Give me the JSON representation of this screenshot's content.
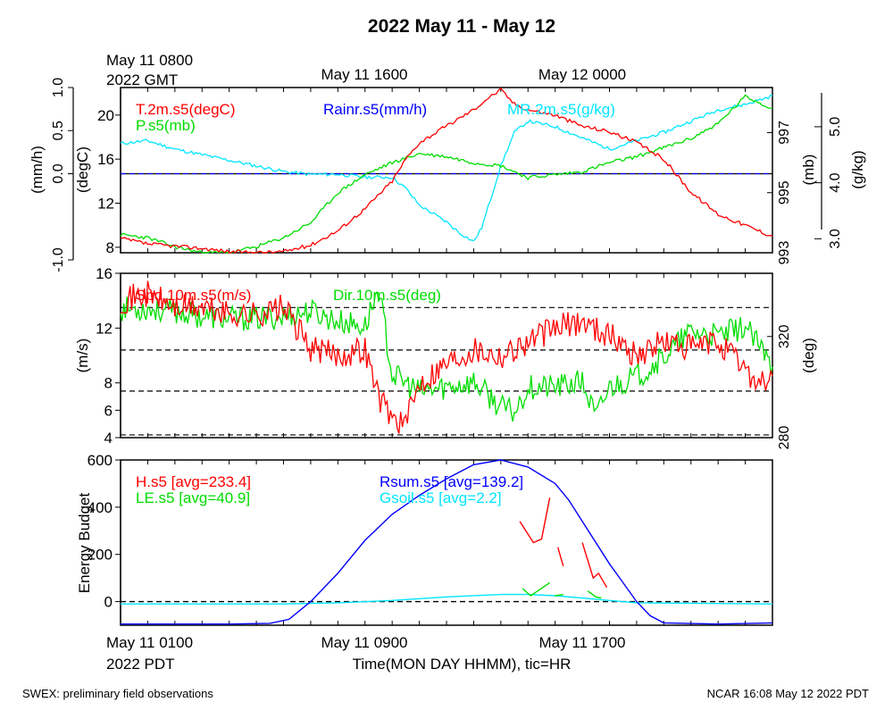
{
  "title": "2022 May 11 - May 12",
  "footer_left": "SWEX: preliminary field observations",
  "footer_right": "NCAR 16:08 May 12 2022 PDT",
  "top_time_labels": {
    "start_line1": "May 11 0800",
    "start_line2": "2022 GMT",
    "mid": "May 11 1600",
    "end": "May 12 0000"
  },
  "bottom_time_labels": {
    "start_line1": "May 11 0100",
    "start_line2": "2022 PDT",
    "mid": "May 11 0900",
    "end": "May 11 1700",
    "axis_title": "Time(MON DAY HHMM), tic=HR"
  },
  "colors": {
    "red": "#ff0000",
    "green": "#00dd00",
    "blue": "#0000ff",
    "cyan": "#00e5ff",
    "black": "#000000"
  },
  "chart_data": [
    {
      "type": "line",
      "panel": "meteorology",
      "x_range_hours": [
        0,
        24
      ],
      "series": [
        {
          "name": "T.2m.s5(degC)",
          "color": "#ff0000",
          "axis": "(degC)",
          "ylim": [
            7.5,
            22.5
          ],
          "points": [
            [
              0,
              8.8
            ],
            [
              1,
              8.3
            ],
            [
              2,
              8.1
            ],
            [
              3,
              7.9
            ],
            [
              4,
              7.6
            ],
            [
              5,
              7.5
            ],
            [
              6,
              7.6
            ],
            [
              7,
              8.2
            ],
            [
              8,
              9.5
            ],
            [
              9,
              11.5
            ],
            [
              10,
              14
            ],
            [
              10.5,
              16
            ],
            [
              11,
              17.5
            ],
            [
              12,
              19
            ],
            [
              13,
              20.5
            ],
            [
              13.5,
              21.5
            ],
            [
              14,
              22.3
            ],
            [
              14.5,
              21
            ],
            [
              15,
              20.5
            ],
            [
              16,
              20
            ],
            [
              17,
              19
            ],
            [
              18,
              18.5
            ],
            [
              19,
              17.5
            ],
            [
              20,
              16
            ],
            [
              21,
              13
            ],
            [
              22,
              11
            ],
            [
              23,
              10
            ],
            [
              24,
              9
            ]
          ]
        },
        {
          "name": "P.s5(mb)",
          "color": "#00dd00",
          "axis": "(mb)",
          "ylim": [
            993,
            998.5
          ],
          "points": [
            [
              0,
              993.6
            ],
            [
              1,
              993.5
            ],
            [
              2,
              993.2
            ],
            [
              3,
              993
            ],
            [
              4,
              993
            ],
            [
              5,
              993.2
            ],
            [
              6,
              993.5
            ],
            [
              7,
              994
            ],
            [
              8,
              995
            ],
            [
              9,
              995.6
            ],
            [
              10,
              996
            ],
            [
              11,
              996.3
            ],
            [
              12,
              996.2
            ],
            [
              13,
              996
            ],
            [
              14,
              995.9
            ],
            [
              15,
              995.5
            ],
            [
              16,
              995.6
            ],
            [
              17,
              995.7
            ],
            [
              18,
              996
            ],
            [
              19,
              996.2
            ],
            [
              20,
              996.5
            ],
            [
              21,
              996.8
            ],
            [
              22,
              997.3
            ],
            [
              23,
              998.2
            ],
            [
              24,
              997.8
            ]
          ]
        },
        {
          "name": "MR.2m.s5(g/kg)",
          "color": "#00e5ff",
          "axis": "(g/kg)",
          "ylim": [
            2.75,
            5.7
          ],
          "points": [
            [
              0,
              4.7
            ],
            [
              1,
              4.75
            ],
            [
              2,
              4.6
            ],
            [
              3,
              4.5
            ],
            [
              4,
              4.4
            ],
            [
              5,
              4.3
            ],
            [
              6,
              4.2
            ],
            [
              7,
              4.15
            ],
            [
              8,
              4.15
            ],
            [
              9,
              4.1
            ],
            [
              10,
              4.1
            ],
            [
              10.5,
              3.9
            ],
            [
              11,
              3.6
            ],
            [
              12,
              3.3
            ],
            [
              12.5,
              3.1
            ],
            [
              13,
              2.95
            ],
            [
              13.3,
              3.2
            ],
            [
              14,
              4.3
            ],
            [
              14.5,
              4.9
            ],
            [
              15,
              5.1
            ],
            [
              16,
              5.0
            ],
            [
              17,
              4.8
            ],
            [
              18,
              4.6
            ],
            [
              19,
              4.75
            ],
            [
              20,
              4.9
            ],
            [
              21,
              5.1
            ],
            [
              22,
              5.3
            ],
            [
              23,
              5.4
            ],
            [
              24,
              5.55
            ]
          ]
        },
        {
          "name": "Rainr.s5(mm/h)",
          "color": "#0000ff",
          "axis": "(mm/h)",
          "ylim": [
            -1.0,
            1.0
          ],
          "points": [
            [
              0,
              0.0
            ],
            [
              24,
              0.0
            ]
          ]
        }
      ],
      "axis_ticks": {
        "mm_h": [
          "-1.0",
          "0.0",
          "0.5",
          "1.0"
        ],
        "degC": [
          "8",
          "12",
          "16",
          "20"
        ],
        "mb": [
          "993",
          "995",
          "997"
        ],
        "g_kg": [
          "3.0",
          "4.0",
          "5.0"
        ]
      },
      "axis_labels": {
        "mm_h": "(mm/h)",
        "degC": "(degC)",
        "mb": "(mb)",
        "g_kg": "(g/kg)"
      }
    },
    {
      "type": "line",
      "panel": "wind",
      "x_range_hours": [
        0,
        24
      ],
      "series": [
        {
          "name": "Spd.10m.s5(m/s)",
          "color": "#ff0000",
          "axis": "(m/s)",
          "ylim": [
            4,
            16
          ],
          "points": [
            [
              0,
              14
            ],
            [
              1,
              14.5
            ],
            [
              2,
              13.5
            ],
            [
              3,
              13.5
            ],
            [
              4,
              13
            ],
            [
              5,
              13
            ],
            [
              6,
              13.5
            ],
            [
              7,
              10.5
            ],
            [
              8,
              10
            ],
            [
              9,
              10.5
            ],
            [
              9.5,
              7
            ],
            [
              10,
              5.5
            ],
            [
              10.5,
              5
            ],
            [
              11,
              8
            ],
            [
              12,
              9.5
            ],
            [
              13,
              10.5
            ],
            [
              14,
              10
            ],
            [
              15,
              11
            ],
            [
              16,
              12
            ],
            [
              17,
              12.5
            ],
            [
              18,
              11.5
            ],
            [
              19,
              10
            ],
            [
              20,
              11
            ],
            [
              21,
              10.5
            ],
            [
              22,
              11
            ],
            [
              23,
              9
            ],
            [
              23.5,
              8
            ],
            [
              24,
              8.5
            ]
          ]
        },
        {
          "name": "Dir.10m.s5(deg)",
          "color": "#00dd00",
          "axis": "(deg)",
          "ylim": [
            280,
            345
          ],
          "points": [
            [
              0,
              331
            ],
            [
              1,
              331
            ],
            [
              2,
              330
            ],
            [
              3,
              328
            ],
            [
              4,
              327
            ],
            [
              5,
              327
            ],
            [
              6,
              328
            ],
            [
              7,
              330
            ],
            [
              8,
              326
            ],
            [
              9,
              324
            ],
            [
              9.5,
              339
            ],
            [
              10,
              305
            ],
            [
              11,
              298
            ],
            [
              12,
              300
            ],
            [
              13,
              302
            ],
            [
              14,
              292
            ],
            [
              14.5,
              290
            ],
            [
              15,
              300
            ],
            [
              16,
              300
            ],
            [
              17,
              302
            ],
            [
              17.5,
              288
            ],
            [
              18,
              300
            ],
            [
              19,
              304
            ],
            [
              20,
              312
            ],
            [
              21,
              322
            ],
            [
              22,
              320
            ],
            [
              23,
              324
            ],
            [
              24,
              308
            ]
          ]
        }
      ],
      "axis_ticks": {
        "m_s": [
          "4",
          "6",
          "8",
          "12",
          "16"
        ],
        "deg": [
          "280",
          "320"
        ]
      },
      "axis_labels": {
        "m_s": "(m/s)",
        "deg": "(deg)"
      },
      "dashed_reference_lines_ms": [
        4.2,
        7.4,
        10.4,
        13.5
      ]
    },
    {
      "type": "line",
      "panel": "energy",
      "x_range_hours": [
        0,
        24
      ],
      "ylim": [
        -100,
        600
      ],
      "ylabel": "Energy Budget",
      "series": [
        {
          "name": "H.s5",
          "avg": "[avg=233.4]",
          "color": "#ff0000",
          "segments": [
            [
              [
                14.7,
                340
              ],
              [
                15.2,
                250
              ],
              [
                15.5,
                265
              ],
              [
                15.8,
                440
              ]
            ],
            [
              [
                16.1,
                230
              ],
              [
                16.3,
                150
              ]
            ],
            [
              [
                17,
                250
              ],
              [
                17.4,
                100
              ],
              [
                17.6,
                120
              ],
              [
                17.9,
                60
              ]
            ]
          ]
        },
        {
          "name": "LE.s5",
          "avg": "[avg=40.9]",
          "color": "#00dd00",
          "segments": [
            [
              [
                14.8,
                55
              ],
              [
                15.1,
                25
              ],
              [
                15.8,
                80
              ]
            ],
            [
              [
                16,
                25
              ],
              [
                16.3,
                30
              ]
            ],
            [
              [
                17.2,
                45
              ],
              [
                17.5,
                20
              ],
              [
                17.7,
                15
              ]
            ]
          ]
        },
        {
          "name": "Rsum.s5",
          "avg": "[avg=139.2]",
          "color": "#0000ff",
          "points": [
            [
              0,
              -95
            ],
            [
              2,
              -95
            ],
            [
              4,
              -95
            ],
            [
              5.5,
              -92
            ],
            [
              6.2,
              -75
            ],
            [
              7,
              0
            ],
            [
              8,
              120
            ],
            [
              9,
              260
            ],
            [
              10,
              370
            ],
            [
              11,
              450
            ],
            [
              12,
              520
            ],
            [
              13,
              580
            ],
            [
              14,
              600
            ],
            [
              15,
              570
            ],
            [
              16,
              500
            ],
            [
              16.5,
              430
            ],
            [
              17,
              340
            ],
            [
              18,
              160
            ],
            [
              18.5,
              80
            ],
            [
              19,
              0
            ],
            [
              19.5,
              -60
            ],
            [
              20,
              -90
            ],
            [
              22,
              -95
            ],
            [
              24,
              -90
            ]
          ]
        },
        {
          "name": "Gsoil.s5",
          "avg": "[avg=2.2]",
          "color": "#00e5ff",
          "points": [
            [
              0,
              -10
            ],
            [
              6,
              -10
            ],
            [
              8,
              -5
            ],
            [
              10,
              5
            ],
            [
              12,
              20
            ],
            [
              14,
              30
            ],
            [
              15,
              30
            ],
            [
              16,
              25
            ],
            [
              17,
              15
            ],
            [
              18,
              5
            ],
            [
              19,
              -5
            ],
            [
              24,
              -10
            ]
          ]
        }
      ],
      "axis_ticks": [
        "0",
        "200",
        "400",
        "600"
      ],
      "dashed_reference_lines": [
        0
      ]
    }
  ]
}
